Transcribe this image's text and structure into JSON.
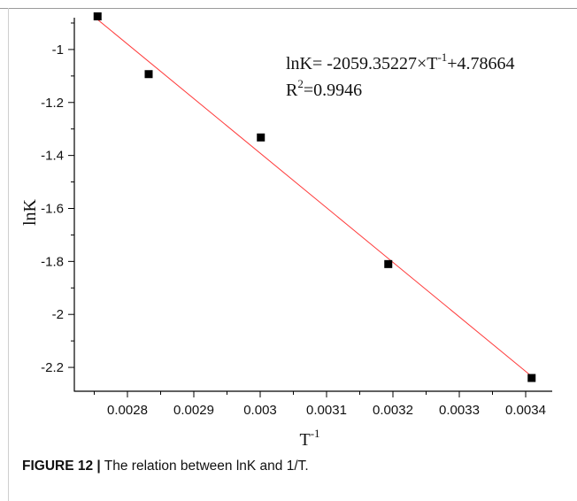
{
  "chart_data": {
    "type": "scatter",
    "x": [
      0.002755,
      0.002832,
      0.003001,
      0.003193,
      0.003409
    ],
    "y": [
      -0.875,
      -1.093,
      -1.332,
      -1.81,
      -2.24
    ],
    "fit": {
      "slope": -2059.35227,
      "intercept": 4.78664
    },
    "xlim": [
      0.00272,
      0.00344
    ],
    "ylim": [
      -2.29,
      -0.88
    ],
    "xticks": [
      0.0028,
      0.0029,
      0.003,
      0.0031,
      0.0032,
      0.0033,
      0.0034
    ],
    "xtick_labels": [
      "0.0028",
      "0.0029",
      "0.003",
      "0.0031",
      "0.0032",
      "0.0033",
      "0.0034"
    ],
    "yticks": [
      -1,
      -1.2,
      -1.4,
      -1.6,
      -1.8,
      -2,
      -2.2
    ],
    "ytick_labels": [
      "-1",
      "-1.2",
      "-1.4",
      "-1.6",
      "-1.8",
      "-2",
      "-2.2"
    ],
    "ylabel": "lnK",
    "xlabel_base": "T",
    "xlabel_sup": "-1",
    "equation": {
      "part1": "lnK= -2059.35227×T",
      "sup": "-1",
      "part2": "+4.78664"
    },
    "r2": {
      "base": "R",
      "sup": "2",
      "rest": "=0.9946"
    },
    "colors": {
      "fit_line": "#ff3b3b",
      "marker": "#000000"
    }
  },
  "caption": {
    "figure": "FIGURE 12 |",
    "text": " The relation between lnK and 1/T."
  }
}
